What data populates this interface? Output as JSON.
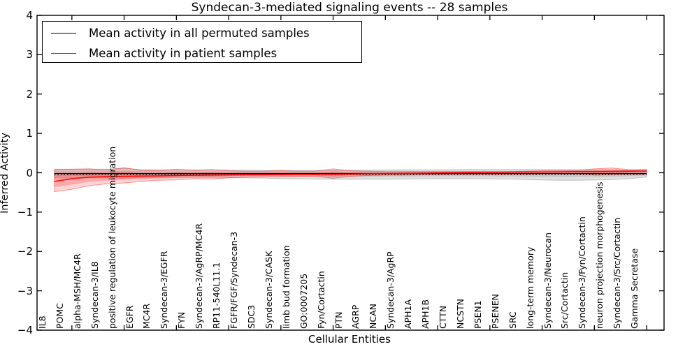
{
  "title": "Syndecan-3-mediated signaling events -- 28 samples",
  "legend": {
    "position": "upper left",
    "entries": [
      {
        "label": "Mean activity in all permuted samples",
        "color": "#000000"
      },
      {
        "label": "Mean activity in patient samples",
        "color": "#ff0000"
      }
    ]
  },
  "chart_data": {
    "type": "line",
    "title": "Syndecan-3-mediated signaling events -- 28 samples",
    "xlabel": "Cellular Entities",
    "ylabel": "Inferred Activity",
    "ylim": [
      -4,
      4
    ],
    "yticks": [
      4,
      3,
      2,
      1,
      0,
      -1,
      -2,
      -3,
      -4
    ],
    "grid": false,
    "legend_position": "upper left",
    "categories": [
      "IL8",
      "POMC",
      "alpha-MSH/MC4R",
      "Syndecan-3/IL8",
      "positive regulation of leukocyte migration",
      "EGFR",
      "MC4R",
      "Syndecan-3/EGFR",
      "FYN",
      "Syndecan-3/AgRP/MC4R",
      "RP11-540L11.1",
      "FGFR/FGF/Syndecan-3",
      "SDC3",
      "Syndecan-3/CASK",
      "limb bud formation",
      "GO:0007205",
      "Fyn/Cortactin",
      "PTN",
      "AGRP",
      "NCAN",
      "Syndecan-3/AgRP",
      "APH1A",
      "APH1B",
      "CTTN",
      "NCSTN",
      "PSEN1",
      "PSENEN",
      "SRC",
      "long-term memory",
      "Syndecan-3/Neurocan",
      "Src/Cortactin",
      "Syndecan-3/Fyn/Cortactin",
      "neuron projection morphogenesis",
      "Syndecan-3/Src/Cortactin",
      "Gamma Secretase"
    ],
    "series": [
      {
        "name": "Mean activity in all permuted samples",
        "color": "#000000",
        "values": [
          -0.02,
          -0.02,
          -0.02,
          -0.02,
          -0.02,
          -0.02,
          -0.02,
          -0.02,
          -0.02,
          -0.02,
          -0.02,
          -0.02,
          -0.02,
          -0.02,
          -0.02,
          -0.02,
          -0.02,
          -0.02,
          -0.02,
          -0.02,
          -0.02,
          -0.02,
          -0.02,
          -0.02,
          -0.02,
          -0.02,
          -0.02,
          -0.02,
          -0.02,
          -0.02,
          -0.02,
          -0.02,
          -0.02,
          -0.02,
          -0.02
        ]
      },
      {
        "name": "Mean activity in patient samples",
        "color": "#ff0000",
        "values": [
          -0.22,
          -0.15,
          -0.11,
          -0.1,
          -0.09,
          -0.085,
          -0.08,
          -0.07,
          -0.065,
          -0.06,
          -0.055,
          -0.05,
          -0.05,
          -0.045,
          -0.04,
          -0.04,
          -0.035,
          -0.03,
          -0.025,
          -0.02,
          -0.015,
          -0.01,
          -0.005,
          0.0,
          0.005,
          0.01,
          0.015,
          0.02,
          0.02,
          0.025,
          0.03,
          0.03,
          0.035,
          0.04,
          0.045
        ]
      }
    ],
    "bands": [
      {
        "name": "permuted-samples-range",
        "color": "#666666",
        "top": [
          0.09,
          0.09,
          0.09,
          0.09,
          0.11,
          0.08,
          0.075,
          0.075,
          0.07,
          0.07,
          0.065,
          0.065,
          0.06,
          0.06,
          0.06,
          0.06,
          0.065,
          0.065,
          0.065,
          0.07,
          0.075,
          0.075,
          0.075,
          0.08,
          0.085,
          0.085,
          0.085,
          0.085,
          0.085,
          0.085,
          0.08,
          0.075,
          0.07,
          0.06,
          0.055
        ],
        "bottom": [
          -0.13,
          -0.13,
          -0.13,
          -0.13,
          -0.14,
          -0.12,
          -0.12,
          -0.12,
          -0.12,
          -0.12,
          -0.125,
          -0.13,
          -0.135,
          -0.15,
          -0.155,
          -0.16,
          -0.165,
          -0.165,
          -0.165,
          -0.165,
          -0.16,
          -0.155,
          -0.15,
          -0.15,
          -0.15,
          -0.155,
          -0.16,
          -0.17,
          -0.185,
          -0.19,
          -0.19,
          -0.185,
          -0.175,
          -0.15,
          -0.11
        ]
      },
      {
        "name": "patient-samples-range",
        "color": "#ff0000",
        "top": [
          0.08,
          0.09,
          0.1,
          0.07,
          0.13,
          0.06,
          0.05,
          0.09,
          0.06,
          0.08,
          0.05,
          0.04,
          0.04,
          0.05,
          0.04,
          0.04,
          0.1,
          0.05,
          0.04,
          0.03,
          0.03,
          0.03,
          0.03,
          0.03,
          0.03,
          0.03,
          0.03,
          0.04,
          0.05,
          0.05,
          0.06,
          0.1,
          0.12,
          0.08,
          0.09
        ],
        "bottom": [
          -0.48,
          -0.42,
          -0.33,
          -0.28,
          -0.26,
          -0.22,
          -0.19,
          -0.18,
          -0.15,
          -0.16,
          -0.13,
          -0.11,
          -0.1,
          -0.1,
          -0.09,
          -0.09,
          -0.14,
          -0.09,
          -0.07,
          -0.06,
          -0.06,
          -0.05,
          -0.05,
          -0.04,
          -0.04,
          -0.04,
          -0.04,
          -0.04,
          -0.03,
          -0.03,
          -0.03,
          -0.06,
          -0.05,
          -0.04,
          -0.03
        ]
      }
    ],
    "baseline_dotted_y": -0.045
  }
}
